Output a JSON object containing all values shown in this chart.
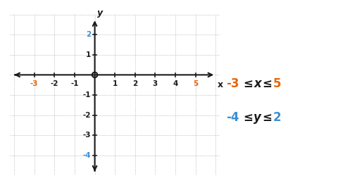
{
  "x_min": -3,
  "x_max": 5,
  "y_min": -4,
  "y_max": 2,
  "x_ticks": [
    -3,
    -2,
    -1,
    1,
    2,
    3,
    4,
    5
  ],
  "y_ticks": [
    -4,
    -3,
    -2,
    -1,
    1,
    2
  ],
  "orange_color": "#E8650A",
  "blue_color": "#3B8FD4",
  "black_color": "#1a1a1a",
  "grid_color": "#aaaaaa",
  "bg_color": "#ffffff",
  "axis_label_x": "x",
  "axis_label_y": "y",
  "highlight_x_min": -3,
  "highlight_x_max": 5,
  "highlight_y_min": -4,
  "highlight_y_max": 2
}
